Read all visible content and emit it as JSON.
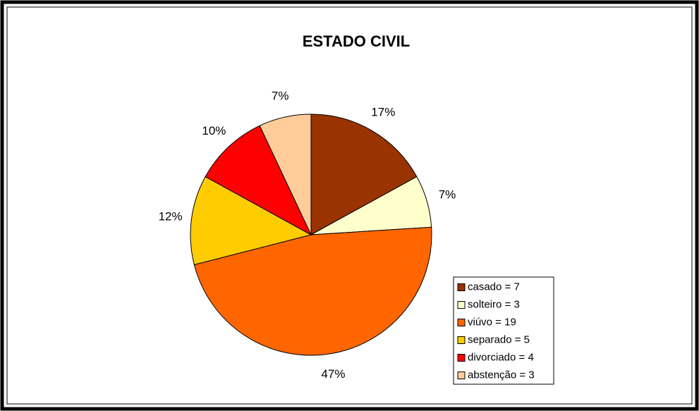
{
  "chart_data": {
    "type": "pie",
    "title": "ESTADO CIVIL",
    "categories": [
      "casado = 7",
      "solteiro = 3",
      "viúvo = 19",
      "separado = 5",
      "divorciado = 4",
      "abstenção = 3"
    ],
    "values": [
      17,
      7,
      47,
      12,
      10,
      7
    ],
    "value_labels": [
      "17%",
      "7%",
      "47%",
      "12%",
      "10%",
      "7%"
    ],
    "colors": [
      "#993300",
      "#FFFFCC",
      "#FF6600",
      "#FFCC00",
      "#FF0000",
      "#FFCC99"
    ],
    "legend": "right"
  }
}
